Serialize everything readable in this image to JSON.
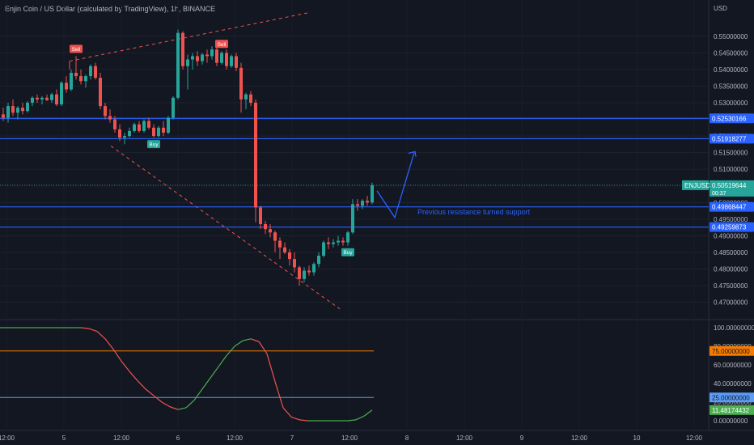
{
  "header": {
    "title": "Enjin Coin / US Dollar (calculated by TradingView), 1h, BINANCE",
    "currency": "USD"
  },
  "chart_data": [
    {
      "type": "candlestick",
      "ylim": [
        0.466,
        0.557
      ],
      "y_ticks": [
        "0.55000000",
        "0.54500000",
        "0.54000000",
        "0.53500000",
        "0.53000000",
        "0.52500000",
        "0.52000000",
        "0.51500000",
        "0.51000000",
        "0.50500000",
        "0.50000000",
        "0.49500000",
        "0.49000000",
        "0.48500000",
        "0.48000000",
        "0.47500000",
        "0.47000000"
      ],
      "x_ticks": [
        "12:00",
        "5",
        "12:00",
        "6",
        "12:00",
        "7",
        "12:00",
        "8",
        "12:00",
        "9",
        "12:00",
        "10",
        "12:00"
      ],
      "candles": [
        [
          0.5265,
          0.5285,
          0.5245,
          0.5255
        ],
        [
          0.5255,
          0.53,
          0.524,
          0.529
        ],
        [
          0.529,
          0.531,
          0.526,
          0.527
        ],
        [
          0.527,
          0.529,
          0.525,
          0.5285
        ],
        [
          0.5285,
          0.53,
          0.5265,
          0.5275
        ],
        [
          0.5275,
          0.5305,
          0.527,
          0.53
        ],
        [
          0.53,
          0.532,
          0.529,
          0.5315
        ],
        [
          0.5315,
          0.5325,
          0.53,
          0.531
        ],
        [
          0.531,
          0.532,
          0.5295,
          0.5315
        ],
        [
          0.5315,
          0.5325,
          0.5305,
          0.5308
        ],
        [
          0.5308,
          0.533,
          0.53,
          0.5325
        ],
        [
          0.5325,
          0.534,
          0.529,
          0.5295
        ],
        [
          0.5295,
          0.5365,
          0.529,
          0.536
        ],
        [
          0.536,
          0.538,
          0.533,
          0.534
        ],
        [
          0.534,
          0.54,
          0.5335,
          0.539
        ],
        [
          0.539,
          0.544,
          0.537,
          0.538
        ],
        [
          0.538,
          0.54,
          0.5355,
          0.5365
        ],
        [
          0.5365,
          0.5385,
          0.5345,
          0.538
        ],
        [
          0.538,
          0.5415,
          0.537,
          0.541
        ],
        [
          0.541,
          0.542,
          0.537,
          0.5375
        ],
        [
          0.5375,
          0.539,
          0.528,
          0.529
        ],
        [
          0.529,
          0.53,
          0.525,
          0.526
        ],
        [
          0.526,
          0.528,
          0.524,
          0.525
        ],
        [
          0.525,
          0.526,
          0.521,
          0.522
        ],
        [
          0.522,
          0.5235,
          0.5185,
          0.5195
        ],
        [
          0.5195,
          0.521,
          0.5175,
          0.52
        ],
        [
          0.52,
          0.5225,
          0.5195,
          0.5215
        ],
        [
          0.5215,
          0.524,
          0.521,
          0.5235
        ],
        [
          0.5235,
          0.5245,
          0.521,
          0.5215
        ],
        [
          0.5215,
          0.525,
          0.521,
          0.5245
        ],
        [
          0.5245,
          0.5255,
          0.522,
          0.5225
        ],
        [
          0.5225,
          0.5235,
          0.5195,
          0.52
        ],
        [
          0.52,
          0.523,
          0.5195,
          0.5225
        ],
        [
          0.5225,
          0.5245,
          0.52,
          0.521
        ],
        [
          0.521,
          0.526,
          0.5205,
          0.5255
        ],
        [
          0.5255,
          0.532,
          0.525,
          0.5315
        ],
        [
          0.5315,
          0.552,
          0.531,
          0.551
        ],
        [
          0.551,
          0.5515,
          0.54,
          0.541
        ],
        [
          0.541,
          0.5445,
          0.534,
          0.543
        ],
        [
          0.543,
          0.545,
          0.54,
          0.544
        ],
        [
          0.544,
          0.5455,
          0.541,
          0.5425
        ],
        [
          0.5425,
          0.545,
          0.5415,
          0.5445
        ],
        [
          0.5445,
          0.546,
          0.542,
          0.544
        ],
        [
          0.544,
          0.547,
          0.543,
          0.546
        ],
        [
          0.546,
          0.547,
          0.541,
          0.542
        ],
        [
          0.542,
          0.5455,
          0.5415,
          0.545
        ],
        [
          0.545,
          0.546,
          0.54,
          0.541
        ],
        [
          0.541,
          0.5445,
          0.5405,
          0.544
        ],
        [
          0.544,
          0.545,
          0.5395,
          0.5405
        ],
        [
          0.5405,
          0.542,
          0.527,
          0.531
        ],
        [
          0.531,
          0.533,
          0.528,
          0.5325
        ],
        [
          0.5325,
          0.5335,
          0.529,
          0.53
        ],
        [
          0.53,
          0.531,
          0.494,
          0.4985
        ],
        [
          0.4985,
          0.499,
          0.492,
          0.4935
        ],
        [
          0.4935,
          0.4945,
          0.4905,
          0.492
        ],
        [
          0.492,
          0.4935,
          0.4895,
          0.491
        ],
        [
          0.491,
          0.4915,
          0.485,
          0.4885
        ],
        [
          0.4885,
          0.4895,
          0.483,
          0.4865
        ],
        [
          0.4865,
          0.488,
          0.4845,
          0.485
        ],
        [
          0.485,
          0.486,
          0.481,
          0.483
        ],
        [
          0.483,
          0.485,
          0.479,
          0.4805
        ],
        [
          0.4805,
          0.481,
          0.475,
          0.477
        ],
        [
          0.477,
          0.4805,
          0.476,
          0.4795
        ],
        [
          0.4795,
          0.481,
          0.478,
          0.479
        ],
        [
          0.479,
          0.482,
          0.478,
          0.4815
        ],
        [
          0.4815,
          0.485,
          0.4805,
          0.484
        ],
        [
          0.484,
          0.4885,
          0.4835,
          0.488
        ],
        [
          0.488,
          0.4895,
          0.486,
          0.4875
        ],
        [
          0.4875,
          0.489,
          0.4865,
          0.488
        ],
        [
          0.488,
          0.49,
          0.487,
          0.4885
        ],
        [
          0.4885,
          0.4895,
          0.487,
          0.488
        ],
        [
          0.488,
          0.4915,
          0.487,
          0.491
        ],
        [
          0.491,
          0.501,
          0.4905,
          0.4995
        ],
        [
          0.4995,
          0.501,
          0.4975,
          0.499
        ],
        [
          0.499,
          0.501,
          0.498,
          0.5005
        ],
        [
          0.5005,
          0.502,
          0.499,
          0.5
        ],
        [
          0.5,
          0.506,
          0.4995,
          0.5052
        ]
      ],
      "horizontal_levels": [
        0.52530166,
        0.51918277,
        0.49868447,
        0.49259873
      ],
      "price_labels": [
        {
          "value": 0.52530166,
          "text": "0.52530166",
          "color": "#2962ff"
        },
        {
          "value": 0.51918277,
          "text": "0.51918277",
          "color": "#2962ff"
        },
        {
          "value": 0.49868447,
          "text": "0.49868447",
          "color": "#2962ff"
        },
        {
          "value": 0.49259873,
          "text": "0.49259873",
          "color": "#2962ff"
        }
      ],
      "last_price": {
        "symbol": "ENJUSD",
        "value": 0.50519644,
        "text": "0.50519644",
        "countdown": "00:37",
        "color": "#26a69a"
      },
      "signals": [
        {
          "label": "Sell",
          "bar": 15,
          "side": "above",
          "color": "#ef5350"
        },
        {
          "label": "Sell",
          "bar": 45,
          "side": "above",
          "color": "#ef5350"
        },
        {
          "label": "Buy",
          "bar": 31,
          "side": "below",
          "color": "#26a69a"
        },
        {
          "label": "Buy",
          "bar": 71,
          "side": "below",
          "color": "#26a69a"
        }
      ],
      "annotation": "Previous resistance turned support",
      "colors": {
        "up": "#26a69a",
        "down": "#ef5350",
        "level": "#2962ff",
        "trend": "#ef5350",
        "grid": "#1e222d"
      }
    },
    {
      "type": "line",
      "ylim": [
        0,
        100
      ],
      "y_ticks": [
        "100.00000000",
        "80.00000000",
        "60.00000000",
        "40.00000000",
        "20.00000000",
        "0.00000000"
      ],
      "levels": [
        {
          "value": 75,
          "text": "75.00000000",
          "color": "#f57c00"
        },
        {
          "value": 25,
          "text": "25.00000000",
          "color": "#5b9cf6"
        }
      ],
      "last_value": {
        "value": 11.48174432,
        "text": "11.48174432",
        "color": "#4caf50"
      },
      "x": [
        0,
        10,
        20,
        30,
        40,
        50,
        60,
        70,
        80,
        90,
        100,
        110,
        120,
        130,
        140,
        150,
        160,
        170,
        180,
        190,
        200,
        210,
        220,
        230,
        240,
        250,
        260,
        270,
        280,
        290,
        300,
        310,
        320,
        330,
        340,
        350,
        360,
        370,
        380,
        390,
        400,
        410,
        420,
        430,
        440,
        450,
        460
      ],
      "values": [
        100,
        100,
        100,
        100,
        100,
        100,
        100,
        100,
        100,
        100,
        100,
        99,
        96,
        88,
        77,
        64,
        53,
        43,
        34,
        27,
        20,
        15,
        12,
        14,
        22,
        34,
        46,
        58,
        70,
        80,
        86,
        88,
        85,
        72,
        42,
        14,
        4,
        1,
        0,
        0,
        0,
        0,
        0,
        0,
        1,
        5,
        11.5
      ],
      "colors": {
        "rising": "#4caf50",
        "falling": "#ef5350"
      }
    }
  ]
}
